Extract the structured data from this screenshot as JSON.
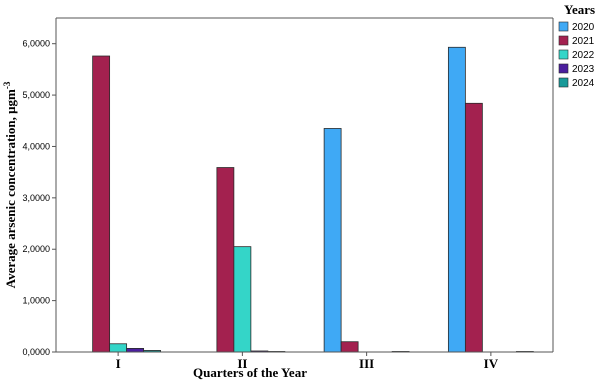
{
  "chart_data": {
    "type": "bar",
    "xlabel": "Quarters of the Year",
    "ylabel": "Average arsenic concentration, μgm",
    "ylabel_superscript": "-3",
    "categories": [
      "I",
      "II",
      "III",
      "IV"
    ],
    "ylim": [
      0,
      6.5
    ],
    "yticks": [
      0,
      1,
      2,
      3,
      4,
      5,
      6
    ],
    "ytick_labels": [
      "0,0000",
      "1,0000",
      "2,0000",
      "3,0000",
      "4,0000",
      "5,0000",
      "6,0000"
    ],
    "grid": false,
    "legend_title": "Years",
    "legend_position": "right",
    "series": [
      {
        "name": "2020",
        "color": "#3fa9f5",
        "values": [
          0,
          0,
          4.35,
          5.93
        ]
      },
      {
        "name": "2021",
        "color": "#a3214f",
        "values": [
          5.76,
          3.59,
          0.2,
          4.84
        ]
      },
      {
        "name": "2022",
        "color": "#34d5c8",
        "values": [
          0.16,
          2.05,
          0,
          0
        ]
      },
      {
        "name": "2023",
        "color": "#4b1f9e",
        "values": [
          0.07,
          0.02,
          0,
          0
        ]
      },
      {
        "name": "2024",
        "color": "#199a99",
        "values": [
          0.03,
          0.01,
          0.01,
          0.01
        ]
      }
    ]
  }
}
